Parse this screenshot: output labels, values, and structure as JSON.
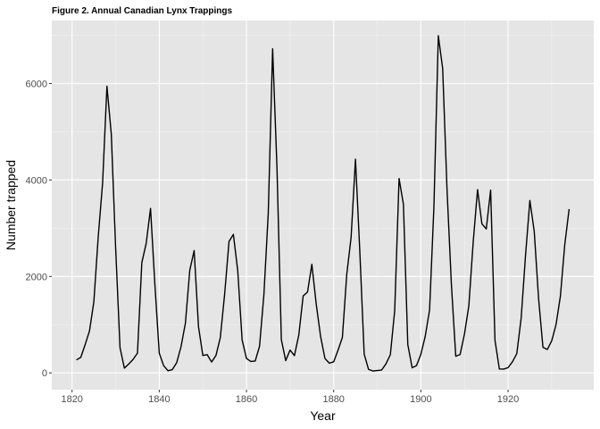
{
  "chart_data": {
    "type": "line",
    "title": "Figure 2. Annual Canadian Lynx Trappings",
    "xlabel": "Year",
    "ylabel": "Number trapped",
    "xlim": [
      1815.35,
      1939.65
    ],
    "ylim": [
      -348.15,
      7305.15
    ],
    "x_ticks": [
      1820,
      1840,
      1860,
      1880,
      1900,
      1920
    ],
    "x_tick_labels": [
      "1820",
      "1840",
      "1860",
      "1880",
      "1900",
      "1920"
    ],
    "y_ticks": [
      0,
      2000,
      4000,
      6000
    ],
    "y_tick_labels": [
      "0",
      "2000",
      "4000",
      "6000"
    ],
    "grid": true,
    "background": "#e5e5e5",
    "grid_color": "#ffffff",
    "line_color": "#000000",
    "series": [
      {
        "x": [
          1821,
          1822,
          1823,
          1824,
          1825,
          1826,
          1827,
          1828,
          1829,
          1830,
          1831,
          1832,
          1833,
          1834,
          1835,
          1836,
          1837,
          1838,
          1839,
          1840,
          1841,
          1842,
          1843,
          1844,
          1845,
          1846,
          1847,
          1848,
          1849,
          1850,
          1851,
          1852,
          1853,
          1854,
          1855,
          1856,
          1857,
          1858,
          1859,
          1860,
          1861,
          1862,
          1863,
          1864,
          1865,
          1866,
          1867,
          1868,
          1869,
          1870,
          1871,
          1872,
          1873,
          1874,
          1875,
          1876,
          1877,
          1878,
          1879,
          1880,
          1881,
          1882,
          1883,
          1884,
          1885,
          1886,
          1887,
          1888,
          1889,
          1890,
          1891,
          1892,
          1893,
          1894,
          1895,
          1896,
          1897,
          1898,
          1899,
          1900,
          1901,
          1902,
          1903,
          1904,
          1905,
          1906,
          1907,
          1908,
          1909,
          1910,
          1911,
          1912,
          1913,
          1914,
          1915,
          1916,
          1917,
          1918,
          1919,
          1920,
          1921,
          1922,
          1923,
          1924,
          1925,
          1926,
          1927,
          1928,
          1929,
          1930,
          1931,
          1932,
          1933,
          1934
        ],
        "values": [
          269,
          321,
          585,
          871,
          1475,
          2821,
          3928,
          5943,
          4950,
          2577,
          523,
          98,
          184,
          279,
          409,
          2285,
          2685,
          3409,
          1824,
          409,
          151,
          45,
          68,
          213,
          546,
          1033,
          2129,
          2536,
          957,
          361,
          377,
          225,
          360,
          731,
          1638,
          2725,
          2871,
          2119,
          684,
          299,
          236,
          245,
          552,
          1623,
          3311,
          6721,
          4254,
          687,
          255,
          473,
          358,
          784,
          1594,
          1676,
          2251,
          1426,
          756,
          299,
          201,
          229,
          469,
          736,
          2042,
          2811,
          4431,
          2511,
          389,
          73,
          39,
          49,
          59,
          188,
          377,
          1292,
          4031,
          3495,
          587,
          105,
          153,
          387,
          758,
          1307,
          3465,
          6991,
          6313,
          3794,
          1836,
          345,
          382,
          808,
          1388,
          2713,
          3800,
          3091,
          2985,
          3790,
          674,
          81,
          80,
          108,
          229,
          399,
          1132,
          2432,
          3574,
          2935,
          1537,
          529,
          485,
          662,
          1000,
          1590,
          2657,
          3396
        ]
      }
    ]
  }
}
